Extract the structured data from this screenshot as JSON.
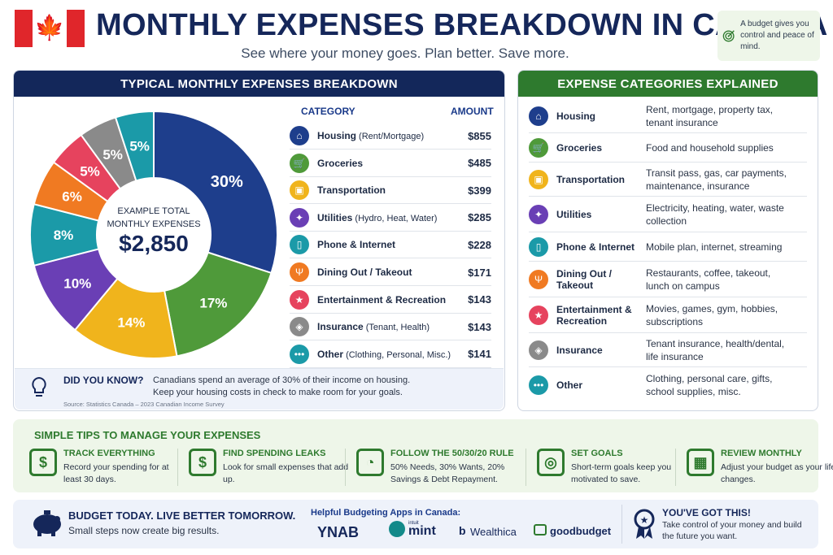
{
  "header": {
    "flag_leaf": "🍁",
    "title": "MONTHLY EXPENSES BREAKDOWN IN CANADA",
    "subtitle": "See where your money goes. Plan better. Save more.",
    "budget_note": "A budget gives you control and peace of mind."
  },
  "breakdown": {
    "heading": "TYPICAL MONTHLY EXPENSES BREAKDOWN",
    "center_label": "EXAMPLE TOTAL MONTHLY EXPENSES",
    "center_value": "$2,850",
    "col_category": "CATEGORY",
    "col_amount": "AMOUNT",
    "rows": [
      {
        "name": "Housing",
        "detail": " (Rent/Mortgage)",
        "amount": "$855",
        "icon": "house-icon",
        "glyph": "⌂",
        "color": "#1e3e8c"
      },
      {
        "name": "Groceries",
        "detail": "",
        "amount": "$485",
        "icon": "cart-icon",
        "glyph": "🛒",
        "color": "#4f9a3a"
      },
      {
        "name": "Transportation",
        "detail": "",
        "amount": "$399",
        "icon": "bus-icon",
        "glyph": "▣",
        "color": "#f0b41c"
      },
      {
        "name": "Utilities",
        "detail": " (Hydro, Heat, Water)",
        "amount": "$285",
        "icon": "bulb-icon",
        "glyph": "✦",
        "color": "#6a3fb5"
      },
      {
        "name": "Phone & Internet",
        "detail": "",
        "amount": "$228",
        "icon": "phone-icon",
        "glyph": "▯",
        "color": "#1b9aa8"
      },
      {
        "name": "Dining Out / Takeout",
        "detail": "",
        "amount": "$171",
        "icon": "cutlery-icon",
        "glyph": "Ψ",
        "color": "#f07a22"
      },
      {
        "name": "Entertainment & Recreation",
        "detail": "",
        "amount": "$143",
        "icon": "ticket-icon",
        "glyph": "★",
        "color": "#e6435e"
      },
      {
        "name": "Insurance",
        "detail": " (Tenant, Health)",
        "amount": "$143",
        "icon": "shield-icon",
        "glyph": "◈",
        "color": "#8a8a8a"
      },
      {
        "name": "Other",
        "detail": " (Clothing, Personal, Misc.)",
        "amount": "$141",
        "icon": "dots-icon",
        "glyph": "•••",
        "color": "#1b9aa8"
      }
    ],
    "did_you_know_title": "DID YOU KNOW?",
    "did_you_know_text1": "Canadians spend an average of 30% of their income on housing.",
    "did_you_know_text2": "Keep your housing costs in check to make room for your goals.",
    "source": "Source: Statistics Canada – 2023 Canadian Income Survey"
  },
  "chart_data": {
    "type": "pie",
    "categories": [
      "Housing",
      "Groceries",
      "Transportation",
      "Utilities",
      "Phone & Internet",
      "Dining Out / Takeout",
      "Entertainment & Recreation",
      "Insurance",
      "Other"
    ],
    "values": [
      30,
      17,
      14,
      10,
      8,
      6,
      5,
      5,
      5
    ],
    "labels": [
      "30%",
      "17%",
      "14%",
      "10%",
      "8%",
      "6%",
      "5%",
      "5%",
      "5%"
    ],
    "colors": [
      "#1e3e8c",
      "#4f9a3a",
      "#f0b41c",
      "#6a3fb5",
      "#1b9aa8",
      "#f07a22",
      "#e6435e",
      "#8a8a8a",
      "#1b9aa8"
    ],
    "donut": true
  },
  "categories_explained": {
    "heading": "EXPENSE CATEGORIES EXPLAINED",
    "rows": [
      {
        "name": "Housing",
        "desc": "Rent, mortgage, property tax, tenant insurance",
        "icon": "house-icon",
        "glyph": "⌂",
        "color": "#1e3e8c"
      },
      {
        "name": "Groceries",
        "desc": "Food and household supplies",
        "icon": "cart-icon",
        "glyph": "🛒",
        "color": "#4f9a3a"
      },
      {
        "name": "Transportation",
        "desc": "Transit pass, gas, car payments, maintenance, insurance",
        "icon": "bus-icon",
        "glyph": "▣",
        "color": "#f0b41c"
      },
      {
        "name": "Utilities",
        "desc": "Electricity, heating, water, waste collection",
        "icon": "bulb-icon",
        "glyph": "✦",
        "color": "#6a3fb5"
      },
      {
        "name": "Phone & Internet",
        "desc": "Mobile plan, internet, streaming",
        "icon": "phone-icon",
        "glyph": "▯",
        "color": "#1b9aa8"
      },
      {
        "name": "Dining Out / Takeout",
        "desc": "Restaurants, coffee, takeout, lunch on campus",
        "icon": "cutlery-icon",
        "glyph": "Ψ",
        "color": "#f07a22"
      },
      {
        "name": "Entertainment & Recreation",
        "desc": "Movies, games, gym, hobbies, subscriptions",
        "icon": "ticket-icon",
        "glyph": "★",
        "color": "#e6435e"
      },
      {
        "name": "Insurance",
        "desc": "Tenant insurance, health/dental, life insurance",
        "icon": "shield-icon",
        "glyph": "◈",
        "color": "#8a8a8a"
      },
      {
        "name": "Other",
        "desc": "Clothing, personal care, gifts, school supplies, misc.",
        "icon": "dots-icon",
        "glyph": "•••",
        "color": "#1b9aa8"
      }
    ]
  },
  "tips": {
    "heading": "SIMPLE TIPS TO MANAGE YOUR EXPENSES",
    "items": [
      {
        "title": "TRACK EVERYTHING",
        "text": "Record your spending for at least 30 days.",
        "icon": "clipboard-dollar-icon",
        "glyph": "$"
      },
      {
        "title": "FIND SPENDING LEAKS",
        "text": "Look for small expenses that add up.",
        "icon": "magnifier-dollar-icon",
        "glyph": "$"
      },
      {
        "title": "FOLLOW THE 50/30/20 RULE",
        "text": "50% Needs, 30% Wants, 20% Savings & Debt Repayment.",
        "icon": "pie-icon",
        "glyph": "◔"
      },
      {
        "title": "SET GOALS",
        "text": "Short-term goals keep you motivated to save.",
        "icon": "target-icon",
        "glyph": "◎"
      },
      {
        "title": "REVIEW MONTHLY",
        "text": "Adjust your budget as your life changes.",
        "icon": "calendar-icon",
        "glyph": "▦"
      }
    ]
  },
  "footer": {
    "slogan_title": "BUDGET TODAY. LIVE BETTER TOMORROW.",
    "slogan_text": "Small steps now create big results.",
    "apps_label": "Helpful Budgeting Apps in Canada:",
    "apps": [
      "YNAB",
      "mint",
      "Wealthica",
      "goodbudget"
    ],
    "mint_prefix": "intuit",
    "closing_title": "YOU'VE GOT THIS!",
    "closing_text": "Take control of your money and build the future you want."
  }
}
